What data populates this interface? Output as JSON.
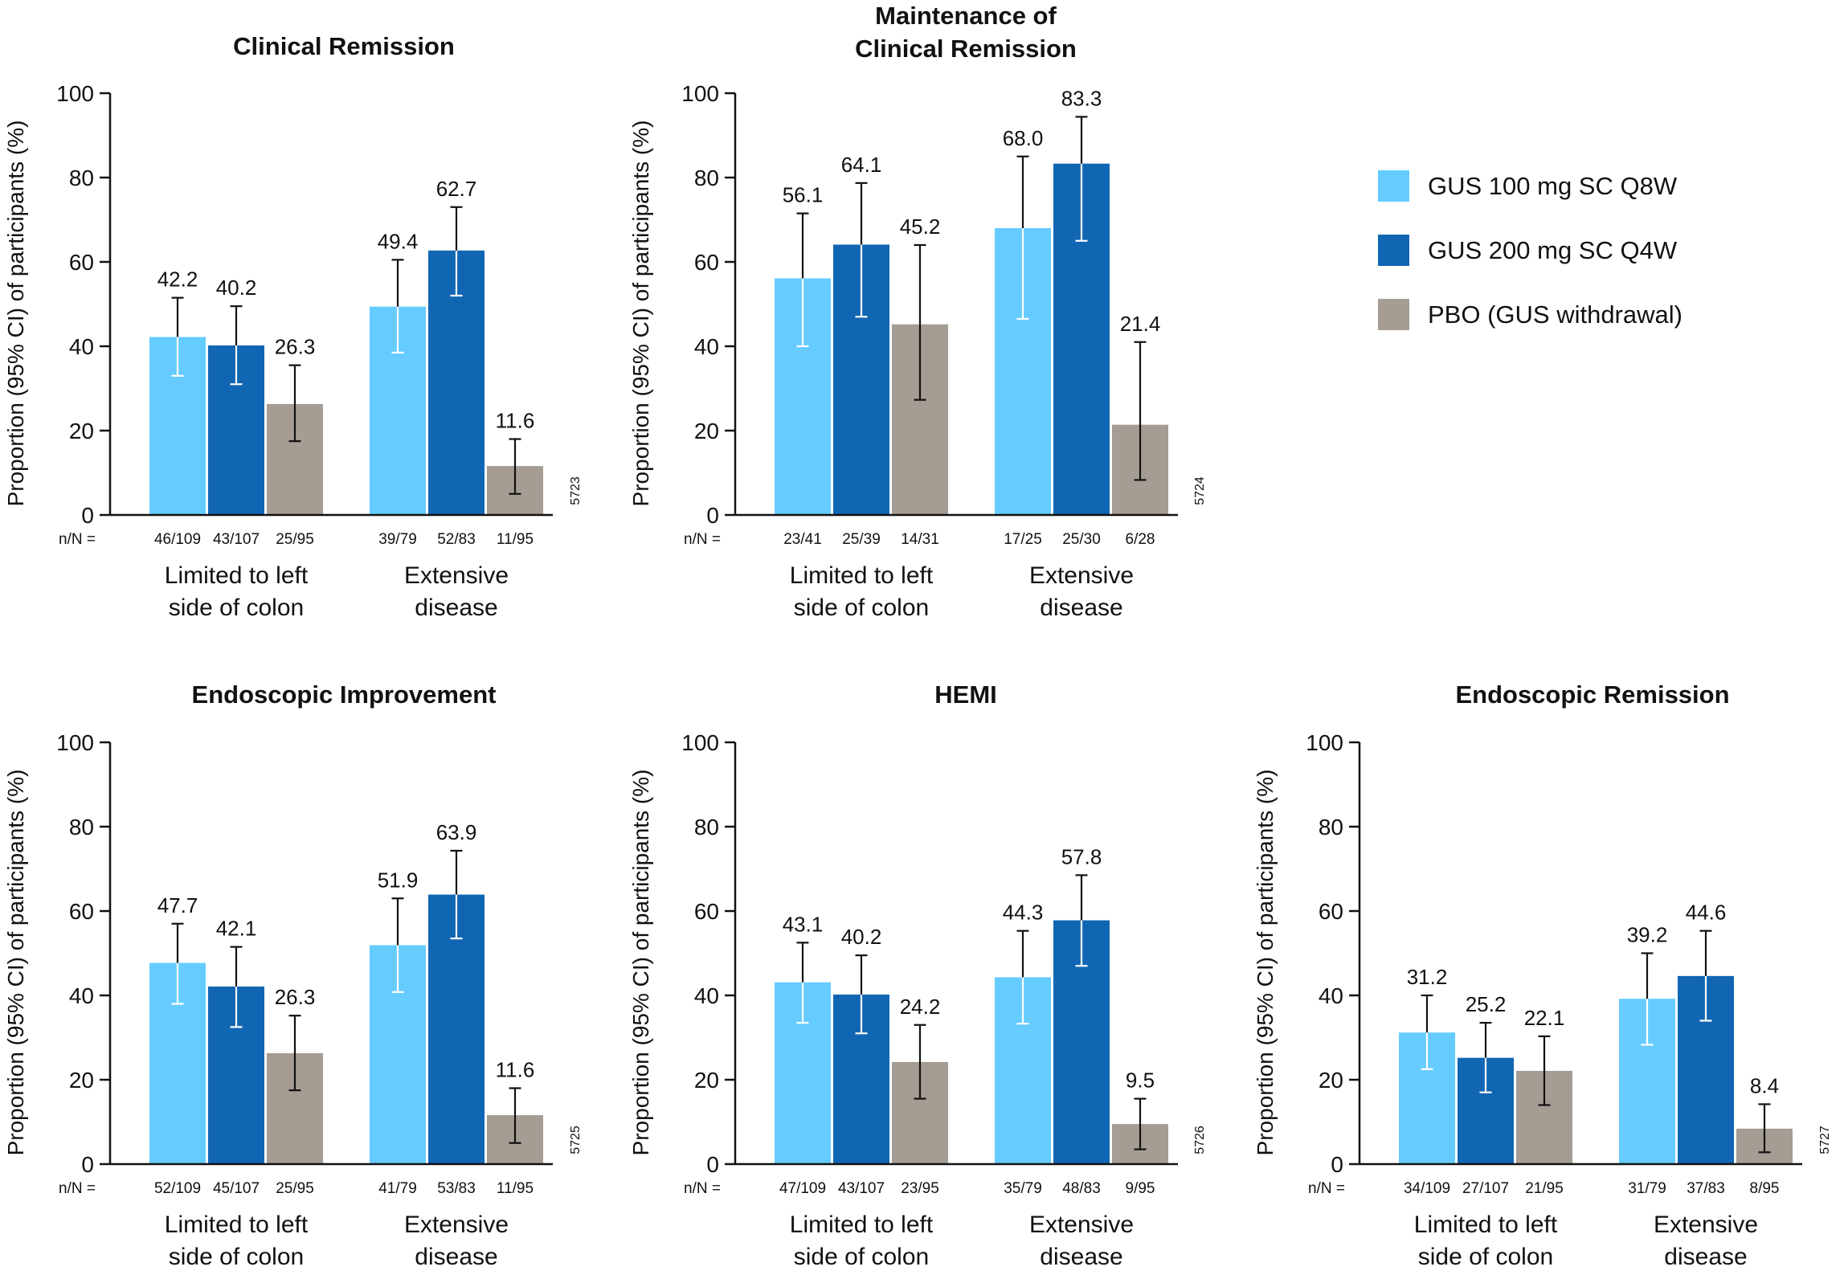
{
  "colors": {
    "gus100": "#66CCFF",
    "gus200": "#1166B3",
    "pbo": "#A59C94",
    "axis": "#111111",
    "errorbar_on_dark": "#ffffff",
    "errorbar_on_light": "#111111"
  },
  "legend": {
    "items": [
      {
        "label": "GUS 100 mg SC Q8W",
        "color": "#66CCFF"
      },
      {
        "label": "GUS 200 mg SC Q4W",
        "color": "#1166B3"
      },
      {
        "label": "PBO (GUS withdrawal)",
        "color": "#A59C94"
      }
    ]
  },
  "nn_prefix": "n/N =",
  "chart_data": [
    {
      "type": "bar",
      "title": "Clinical Remission",
      "ylabel": "Proportion (95% CI) of participants (%)",
      "ylim": [
        0,
        100
      ],
      "yticks": [
        0,
        20,
        40,
        60,
        80,
        100
      ],
      "categories": [
        "Limited to left side of colon",
        "Extensive disease"
      ],
      "series": [
        {
          "name": "GUS 100 mg SC Q8W",
          "values": [
            42.2,
            49.4
          ],
          "ci_low": [
            33,
            38.5
          ],
          "ci_high": [
            51.5,
            60.5
          ],
          "nn": [
            "46/109",
            "39/79"
          ]
        },
        {
          "name": "GUS 200 mg SC Q4W",
          "values": [
            40.2,
            62.7
          ],
          "ci_low": [
            31,
            52
          ],
          "ci_high": [
            49.5,
            73
          ],
          "nn": [
            "43/107",
            "52/83"
          ]
        },
        {
          "name": "PBO (GUS withdrawal)",
          "values": [
            26.3,
            11.6
          ],
          "ci_low": [
            17.5,
            5
          ],
          "ci_high": [
            35.5,
            18
          ],
          "nn": [
            "25/95",
            "11/95"
          ]
        }
      ],
      "code": "5723"
    },
    {
      "type": "bar",
      "title": "Maintenance of Clinical Remission",
      "ylabel": "Proportion (95% CI) of participants (%)",
      "ylim": [
        0,
        100
      ],
      "yticks": [
        0,
        20,
        40,
        60,
        80,
        100
      ],
      "categories": [
        "Limited to left side of colon",
        "Extensive disease"
      ],
      "series": [
        {
          "name": "GUS 100 mg SC Q8W",
          "values": [
            56.1,
            68.0
          ],
          "ci_low": [
            40,
            46.5
          ],
          "ci_high": [
            71.5,
            85
          ],
          "nn": [
            "23/41",
            "17/25"
          ]
        },
        {
          "name": "GUS 200 mg SC Q4W",
          "values": [
            64.1,
            83.3
          ],
          "ci_low": [
            47,
            65
          ],
          "ci_high": [
            78.7,
            94.4
          ],
          "nn": [
            "25/39",
            "25/30"
          ]
        },
        {
          "name": "PBO (GUS withdrawal)",
          "values": [
            45.2,
            21.4
          ],
          "ci_low": [
            27.3,
            8.3
          ],
          "ci_high": [
            64,
            41
          ],
          "nn": [
            "14/31",
            "6/28"
          ]
        }
      ],
      "code": "5724"
    },
    {
      "type": "bar",
      "title": "Endoscopic Improvement",
      "ylabel": "Proportion (95% CI) of participants (%)",
      "ylim": [
        0,
        100
      ],
      "yticks": [
        0,
        20,
        40,
        60,
        80,
        100
      ],
      "categories": [
        "Limited to left side of colon",
        "Extensive disease"
      ],
      "series": [
        {
          "name": "GUS 100 mg SC Q8W",
          "values": [
            47.7,
            51.9
          ],
          "ci_low": [
            38,
            40.8
          ],
          "ci_high": [
            57,
            63
          ],
          "nn": [
            "52/109",
            "41/79"
          ]
        },
        {
          "name": "GUS 200 mg SC Q4W",
          "values": [
            42.1,
            63.9
          ],
          "ci_low": [
            32.5,
            53.5
          ],
          "ci_high": [
            51.5,
            74.3
          ],
          "nn": [
            "45/107",
            "53/83"
          ]
        },
        {
          "name": "PBO (GUS withdrawal)",
          "values": [
            26.3,
            11.6
          ],
          "ci_low": [
            17.5,
            5
          ],
          "ci_high": [
            35.2,
            18
          ],
          "nn": [
            "25/95",
            "11/95"
          ]
        }
      ],
      "code": "5725"
    },
    {
      "type": "bar",
      "title": "HEMI",
      "ylabel": "Proportion (95% CI) of participants (%)",
      "ylim": [
        0,
        100
      ],
      "yticks": [
        0,
        20,
        40,
        60,
        80,
        100
      ],
      "categories": [
        "Limited to left side of colon",
        "Extensive disease"
      ],
      "series": [
        {
          "name": "GUS 100 mg SC Q8W",
          "values": [
            43.1,
            44.3
          ],
          "ci_low": [
            33.5,
            33.3
          ],
          "ci_high": [
            52.5,
            55.3
          ],
          "nn": [
            "47/109",
            "35/79"
          ]
        },
        {
          "name": "GUS 200 mg SC Q4W",
          "values": [
            40.2,
            57.8
          ],
          "ci_low": [
            31,
            47
          ],
          "ci_high": [
            49.5,
            68.5
          ],
          "nn": [
            "43/107",
            "48/83"
          ]
        },
        {
          "name": "PBO (GUS withdrawal)",
          "values": [
            24.2,
            9.5
          ],
          "ci_low": [
            15.5,
            3.5
          ],
          "ci_high": [
            33,
            15.5
          ],
          "nn": [
            "23/95",
            "9/95"
          ]
        }
      ],
      "code": "5726"
    },
    {
      "type": "bar",
      "title": "Endoscopic Remission",
      "ylabel": "Proportion (95% CI) of participants (%)",
      "ylim": [
        0,
        100
      ],
      "yticks": [
        0,
        20,
        40,
        60,
        80,
        100
      ],
      "categories": [
        "Limited to left side of colon",
        "Extensive disease"
      ],
      "series": [
        {
          "name": "GUS 100 mg SC Q8W",
          "values": [
            31.2,
            39.2
          ],
          "ci_low": [
            22.5,
            28.3
          ],
          "ci_high": [
            40,
            50
          ],
          "nn": [
            "34/109",
            "31/79"
          ]
        },
        {
          "name": "GUS 200 mg SC Q4W",
          "values": [
            25.2,
            44.6
          ],
          "ci_low": [
            17,
            34
          ],
          "ci_high": [
            33.5,
            55.3
          ],
          "nn": [
            "27/107",
            "37/83"
          ]
        },
        {
          "name": "PBO (GUS withdrawal)",
          "values": [
            22.1,
            8.4
          ],
          "ci_low": [
            14,
            2.8
          ],
          "ci_high": [
            30.3,
            14.2
          ],
          "nn": [
            "21/95",
            "8/95"
          ]
        }
      ],
      "code": "5727"
    }
  ]
}
